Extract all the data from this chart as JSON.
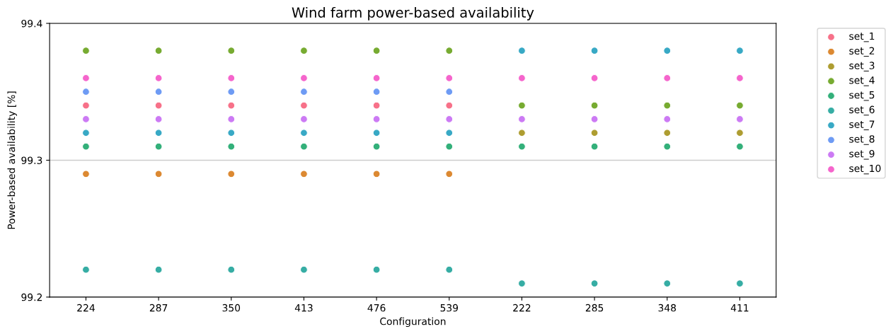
{
  "chart_data": {
    "type": "scatter",
    "title": "Wind farm power-based availability",
    "xlabel": "Configuration",
    "ylabel": "Power-based availability [%]",
    "categories": [
      "224",
      "287",
      "350",
      "413",
      "476",
      "539",
      "222",
      "285",
      "348",
      "411"
    ],
    "ylim": [
      99.2,
      99.4
    ],
    "yticks": [
      99.2,
      99.3,
      99.4
    ],
    "grid": "y",
    "legend": "top right",
    "marker": "circle",
    "series": [
      {
        "name": "set_1",
        "color": "#f77189",
        "values": [
          99.34,
          99.34,
          99.34,
          99.34,
          99.34,
          99.34,
          null,
          null,
          null,
          null
        ]
      },
      {
        "name": "set_2",
        "color": "#dc8932",
        "values": [
          99.29,
          99.29,
          99.29,
          99.29,
          99.29,
          99.29,
          null,
          null,
          null,
          null
        ]
      },
      {
        "name": "set_3",
        "color": "#ae9d31",
        "values": [
          null,
          null,
          null,
          null,
          null,
          null,
          99.32,
          99.32,
          99.32,
          99.32
        ]
      },
      {
        "name": "set_4",
        "color": "#77ab31",
        "values": [
          99.38,
          99.38,
          99.38,
          99.38,
          99.38,
          99.38,
          99.34,
          99.34,
          99.34,
          99.34
        ]
      },
      {
        "name": "set_5",
        "color": "#33b07a",
        "values": [
          99.31,
          99.31,
          99.31,
          99.31,
          99.31,
          99.31,
          99.31,
          99.31,
          99.31,
          99.31
        ]
      },
      {
        "name": "set_6",
        "color": "#36ada4",
        "values": [
          99.22,
          99.22,
          99.22,
          99.22,
          99.22,
          99.22,
          99.21,
          99.21,
          99.21,
          99.21
        ]
      },
      {
        "name": "set_7",
        "color": "#38a9c5",
        "values": [
          99.32,
          99.32,
          99.32,
          99.32,
          99.32,
          99.32,
          99.38,
          99.38,
          99.38,
          99.38
        ]
      },
      {
        "name": "set_8",
        "color": "#6e9bf4",
        "values": [
          99.35,
          99.35,
          99.35,
          99.35,
          99.35,
          99.35,
          null,
          null,
          null,
          null
        ]
      },
      {
        "name": "set_9",
        "color": "#cc7af4",
        "values": [
          99.33,
          99.33,
          99.33,
          99.33,
          99.33,
          99.33,
          99.33,
          99.33,
          99.33,
          99.33
        ]
      },
      {
        "name": "set_10",
        "color": "#f565cc",
        "values": [
          99.36,
          99.36,
          99.36,
          99.36,
          99.36,
          99.36,
          99.36,
          99.36,
          99.36,
          99.36
        ]
      }
    ]
  }
}
